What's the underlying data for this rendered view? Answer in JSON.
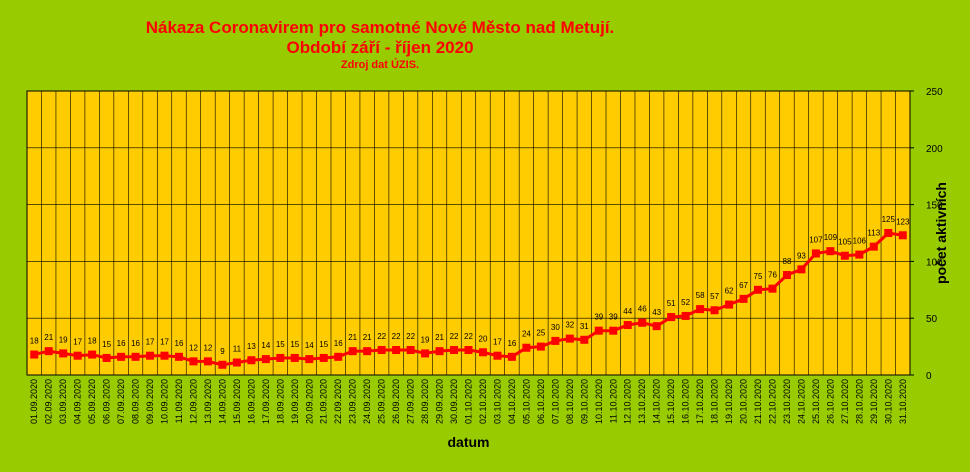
{
  "chart_data": {
    "type": "line",
    "title": "Nákaza Coronavirem pro samotné Nové Město nad Metují.",
    "subtitle": "Období září - říjen 2020",
    "source": "Zdroj dat ÚZIS.",
    "xlabel": "datum",
    "ylabel": "počet aktivních",
    "ylim": [
      0,
      250
    ],
    "yticks": [
      0,
      50,
      100,
      150,
      200,
      250
    ],
    "y_axis_position": "right",
    "grid": true,
    "colors": {
      "background": "#99cc00",
      "plot_area": "#ffcc00",
      "series": "#ff0000",
      "title": "#ff0000"
    },
    "categories": [
      "01.09.2020",
      "02.09.2020",
      "03.09.2020",
      "04.09.2020",
      "05.09.2020",
      "06.09.2020",
      "07.09.2020",
      "08.09.2020",
      "09.09.2020",
      "10.09.2020",
      "11.09.2020",
      "12.09.2020",
      "13.09.2020",
      "14.09.2020",
      "15.09.2020",
      "16.09.2020",
      "17.09.2020",
      "18.09.2020",
      "19.09.2020",
      "20.09.2020",
      "21.09.2020",
      "22.09.2020",
      "23.09.2020",
      "24.09.2020",
      "25.09.2020",
      "26.09.2020",
      "27.09.2020",
      "28.09.2020",
      "29.09.2020",
      "30.09.2020",
      "01.10.2020",
      "02.10.2020",
      "03.10.2020",
      "04.10.2020",
      "05.10.2020",
      "06.10.2020",
      "07.10.2020",
      "08.10.2020",
      "09.10.2020",
      "10.10.2020",
      "11.10.2020",
      "12.10.2020",
      "13.10.2020",
      "14.10.2020",
      "15.10.2020",
      "16.10.2020",
      "17.10.2020",
      "18.10.2020",
      "19.10.2020",
      "20.10.2020",
      "21.10.2020",
      "22.10.2020",
      "23.10.2020",
      "24.10.2020",
      "25.10.2020",
      "26.10.2020",
      "27.10.2020",
      "28.10.2020",
      "29.10.2020",
      "30.10.2020",
      "31.10.2020"
    ],
    "values": [
      18,
      21,
      19,
      17,
      18,
      15,
      16,
      16,
      17,
      17,
      16,
      12,
      12,
      9,
      11,
      13,
      14,
      15,
      15,
      14,
      15,
      16,
      21,
      21,
      22,
      22,
      22,
      19,
      21,
      22,
      22,
      20,
      17,
      16,
      24,
      25,
      30,
      32,
      31,
      39,
      39,
      44,
      46,
      43,
      51,
      52,
      58,
      57,
      62,
      67,
      75,
      76,
      88,
      93,
      107,
      109,
      105,
      106,
      113,
      125,
      123
    ]
  }
}
